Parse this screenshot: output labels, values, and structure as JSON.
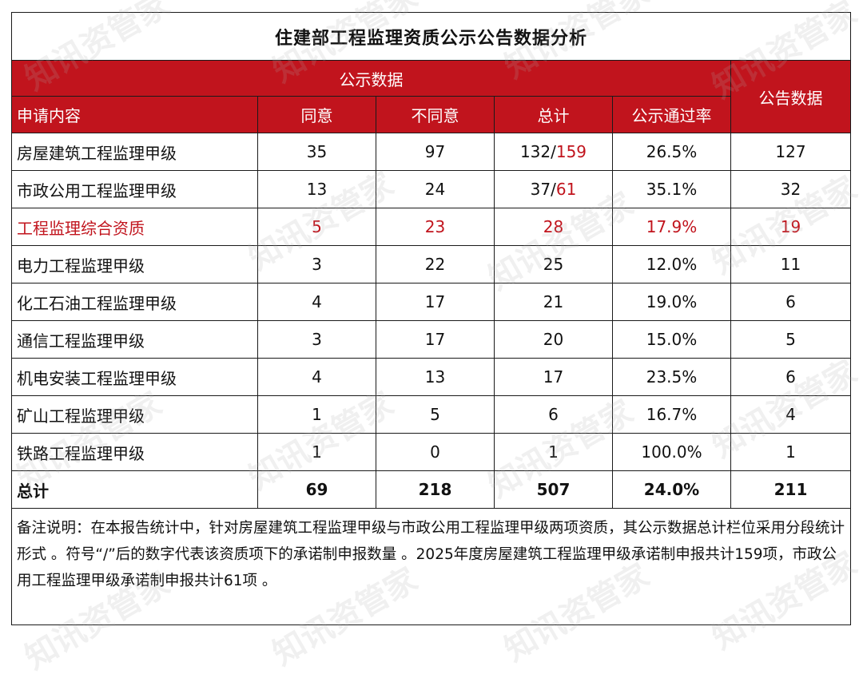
{
  "title": "住建部工程监理资质公示公告数据分析",
  "header": {
    "group_publicity": "公示数据",
    "group_announcement": "公告数据",
    "col_item": "申请内容",
    "col_agree": "同意",
    "col_disagree": "不同意",
    "col_total": "总计",
    "col_rate": "公示通过率"
  },
  "rows": [
    {
      "item": "房屋建筑工程监理甲级",
      "agree": "35",
      "disagree": "97",
      "total_a": "132/",
      "total_b": "159",
      "rate": "26.5%",
      "announce": "127"
    },
    {
      "item": "市政公用工程监理甲级",
      "agree": "13",
      "disagree": "24",
      "total_a": "37/",
      "total_b": "61",
      "rate": "35.1%",
      "announce": "32"
    },
    {
      "item": "工程监理综合资质",
      "agree": "5",
      "disagree": "23",
      "total_a": "28",
      "total_b": "",
      "rate": "17.9%",
      "announce": "19"
    },
    {
      "item": "电力工程监理甲级",
      "agree": "3",
      "disagree": "22",
      "total_a": "25",
      "total_b": "",
      "rate": "12.0%",
      "announce": "11"
    },
    {
      "item": "化工石油工程监理甲级",
      "agree": "4",
      "disagree": "17",
      "total_a": "21",
      "total_b": "",
      "rate": "19.0%",
      "announce": "6"
    },
    {
      "item": "通信工程监理甲级",
      "agree": "3",
      "disagree": "17",
      "total_a": "20",
      "total_b": "",
      "rate": "15.0%",
      "announce": "5"
    },
    {
      "item": "机电安装工程监理甲级",
      "agree": "4",
      "disagree": "13",
      "total_a": "17",
      "total_b": "",
      "rate": "23.5%",
      "announce": "6"
    },
    {
      "item": "矿山工程监理甲级",
      "agree": "1",
      "disagree": "5",
      "total_a": "6",
      "total_b": "",
      "rate": "16.7%",
      "announce": "4"
    },
    {
      "item": "铁路工程监理甲级",
      "agree": "1",
      "disagree": "0",
      "total_a": "1",
      "total_b": "",
      "rate": "100.0%",
      "announce": "1"
    }
  ],
  "totals": {
    "item": "总计",
    "agree": "69",
    "disagree": "218",
    "total": "507",
    "rate": "24.0%",
    "announce": "211"
  },
  "note": "备注说明：在本报告统计中，针对房屋建筑工程监理甲级与市政公用工程监理甲级两项资质，其公示数据总计栏位采用分段统计形式 。符号“/”后的数字代表该资质项下的承诺制申报数量 。2025年度房屋建筑工程监理甲级承诺制申报共计159项，市政公用工程监理甲级承诺制申报共计61项 。",
  "watermark": "知讯资管家",
  "colors": {
    "header_red": "#c1141d",
    "highlight_red": "#c1141d",
    "border": "#1a1a1a"
  }
}
